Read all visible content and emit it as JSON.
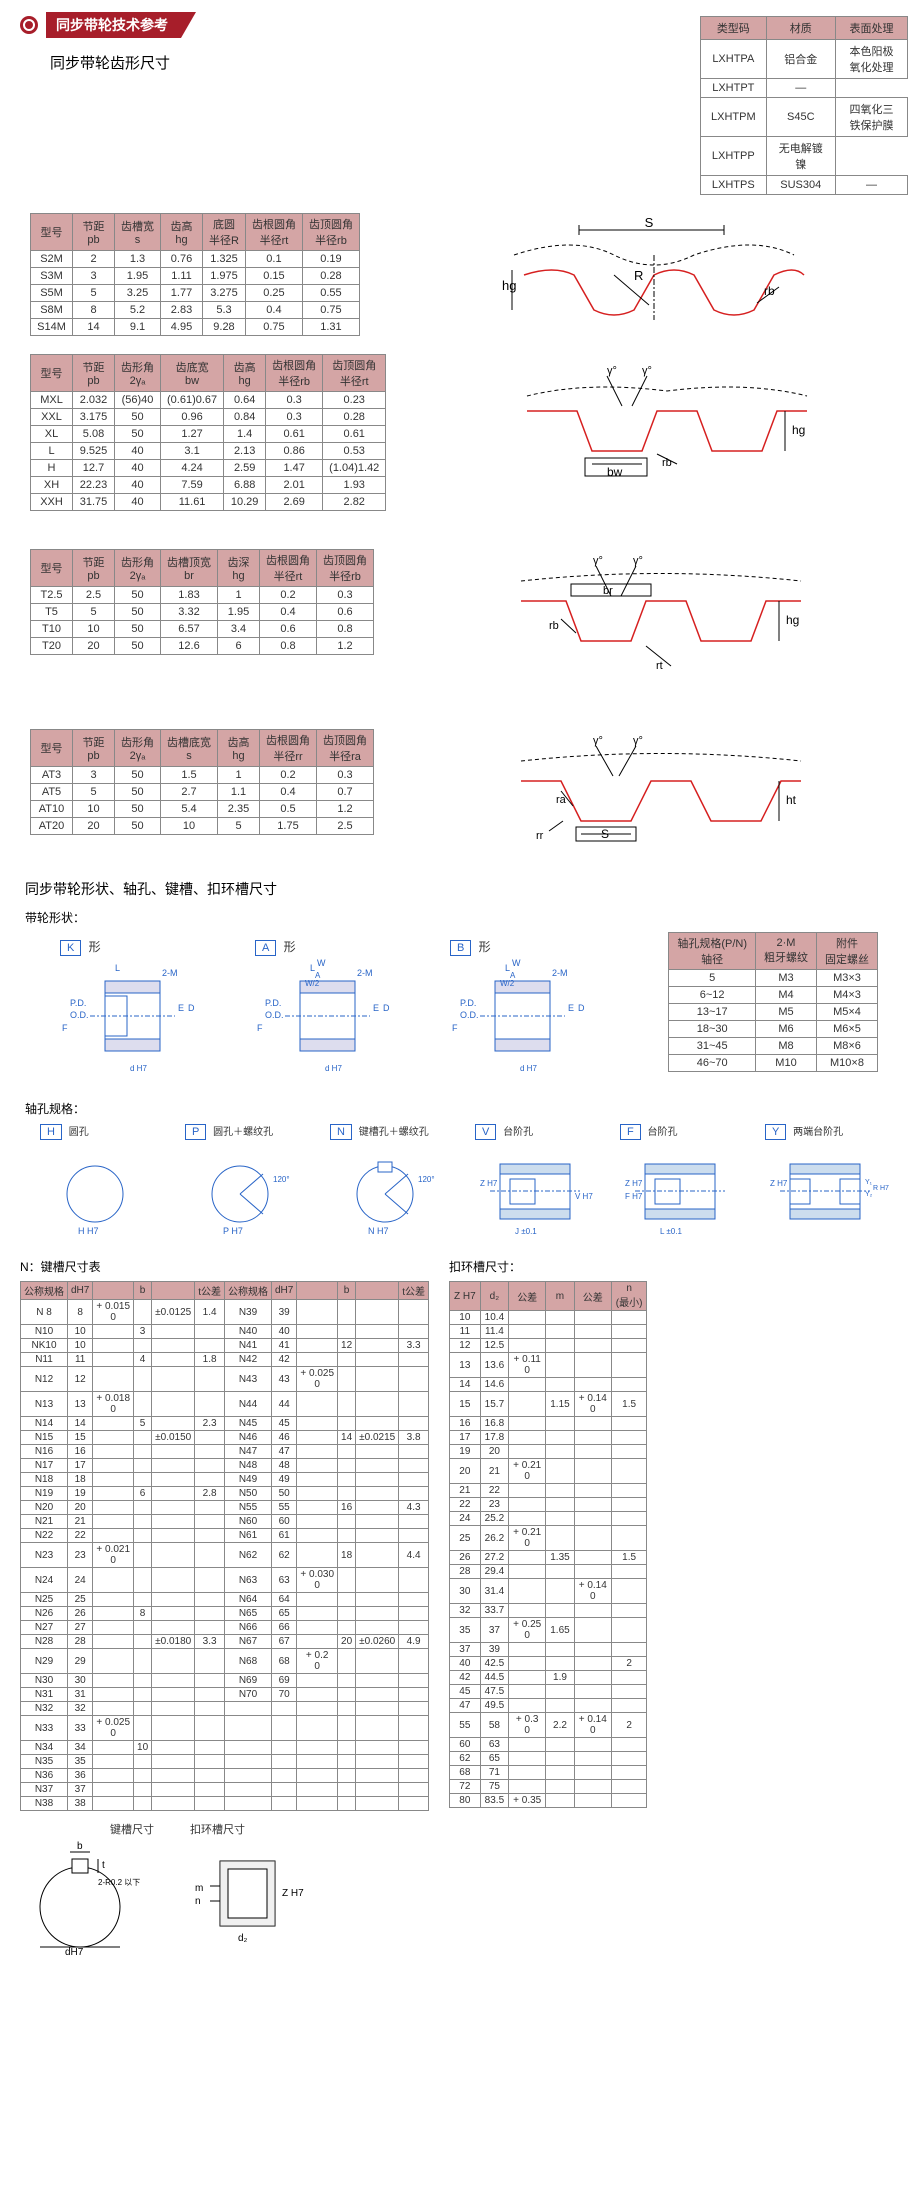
{
  "header": {
    "title": "同步带轮技术参考"
  },
  "subtitle": "同步带轮齿形尺寸",
  "mat_table": {
    "headers": [
      "类型码",
      "材质",
      "表面处理"
    ],
    "rows": [
      [
        "LXHTPA",
        "铝合金",
        "本色阳极氧化处理"
      ],
      [
        "LXHTPT",
        "",
        "—"
      ],
      [
        "LXHTPM",
        "S45C",
        "四氧化三铁保护膜"
      ],
      [
        "LXHTPP",
        "",
        "无电解镀镍"
      ],
      [
        "LXHTPS",
        "SUS304",
        "—"
      ]
    ]
  },
  "tooth1": {
    "headers": [
      "型号",
      "节距\npb",
      "齿槽宽\ns",
      "齿高\nhg",
      "底圆\n半径R",
      "齿根圆角\n半径rt",
      "齿顶圆角\n半径rb"
    ],
    "rows": [
      [
        "S2M",
        "2",
        "1.3",
        "0.76",
        "1.325",
        "0.1",
        "0.19"
      ],
      [
        "S3M",
        "3",
        "1.95",
        "1.11",
        "1.975",
        "0.15",
        "0.28"
      ],
      [
        "S5M",
        "5",
        "3.25",
        "1.77",
        "3.275",
        "0.25",
        "0.55"
      ],
      [
        "S8M",
        "8",
        "5.2",
        "2.83",
        "5.3",
        "0.4",
        "0.75"
      ],
      [
        "S14M",
        "14",
        "9.1",
        "4.95",
        "9.28",
        "0.75",
        "1.31"
      ]
    ],
    "diagram_labels": [
      "S",
      "R",
      "hg",
      "rb"
    ]
  },
  "tooth2": {
    "headers": [
      "型号",
      "节距\npb",
      "齿形角\n2γₐ",
      "齿底宽\nbw",
      "齿高\nhg",
      "齿根圆角\n半径rb",
      "齿顶圆角\n半径rt"
    ],
    "rows": [
      [
        "MXL",
        "2.032",
        "(56)40",
        "(0.61)0.67",
        "0.64",
        "0.3",
        "0.23"
      ],
      [
        "XXL",
        "3.175",
        "50",
        "0.96",
        "0.84",
        "0.3",
        "0.28"
      ],
      [
        "XL",
        "5.08",
        "50",
        "1.27",
        "1.4",
        "0.61",
        "0.61"
      ],
      [
        "L",
        "9.525",
        "40",
        "3.1",
        "2.13",
        "0.86",
        "0.53"
      ],
      [
        "H",
        "12.7",
        "40",
        "4.24",
        "2.59",
        "1.47",
        "(1.04)1.42"
      ],
      [
        "XH",
        "22.23",
        "40",
        "7.59",
        "6.88",
        "2.01",
        "1.93"
      ],
      [
        "XXH",
        "31.75",
        "40",
        "11.61",
        "10.29",
        "2.69",
        "2.82"
      ]
    ],
    "diagram_labels": [
      "γ°",
      "γ°",
      "bw",
      "hg",
      "rb"
    ]
  },
  "tooth3": {
    "headers": [
      "型号",
      "节距\npb",
      "齿形角\n2γₐ",
      "齿槽顶宽\nbr",
      "齿深\nhg",
      "齿根圆角\n半径rt",
      "齿顶圆角\n半径rb"
    ],
    "rows": [
      [
        "T2.5",
        "2.5",
        "50",
        "1.83",
        "1",
        "0.2",
        "0.3"
      ],
      [
        "T5",
        "5",
        "50",
        "3.32",
        "1.95",
        "0.4",
        "0.6"
      ],
      [
        "T10",
        "10",
        "50",
        "6.57",
        "3.4",
        "0.6",
        "0.8"
      ],
      [
        "T20",
        "20",
        "50",
        "12.6",
        "6",
        "0.8",
        "1.2"
      ]
    ],
    "diagram_labels": [
      "γ°",
      "γ°",
      "br",
      "hg",
      "rb",
      "rt"
    ]
  },
  "tooth4": {
    "headers": [
      "型号",
      "节距\npb",
      "齿形角\n2γₐ",
      "齿槽底宽\ns",
      "齿高\nhg",
      "齿根圆角\n半径rr",
      "齿顶圆角\n半径ra"
    ],
    "rows": [
      [
        "AT3",
        "3",
        "50",
        "1.5",
        "1",
        "0.2",
        "0.3"
      ],
      [
        "AT5",
        "5",
        "50",
        "2.7",
        "1.1",
        "0.4",
        "0.7"
      ],
      [
        "AT10",
        "10",
        "50",
        "5.4",
        "2.35",
        "0.5",
        "1.2"
      ],
      [
        "AT20",
        "20",
        "50",
        "10",
        "5",
        "1.75",
        "2.5"
      ]
    ],
    "diagram_labels": [
      "γ°",
      "γ°",
      "S",
      "ht",
      "ra",
      "rr"
    ]
  },
  "section2": "同步带轮形状、轴孔、键槽、扣环槽尺寸",
  "shape_section_label": "带轮形状：",
  "shapes": [
    {
      "code": "K",
      "suffix": "形"
    },
    {
      "code": "A",
      "suffix": "形"
    },
    {
      "code": "B",
      "suffix": "形"
    }
  ],
  "shape_dims": [
    "L",
    "2-M",
    "W",
    "A",
    "W/2",
    "P.D.",
    "O.D.",
    "E",
    "D",
    "F",
    "d",
    "H7"
  ],
  "axle_table": {
    "headers": [
      "轴孔规格(P/N)\n轴径",
      "2·M\n粗牙螺纹",
      "附件\n固定螺丝"
    ],
    "rows": [
      [
        "5",
        "M3",
        "M3×3"
      ],
      [
        "6~12",
        "M4",
        "M4×3"
      ],
      [
        "13~17",
        "M5",
        "M5×4"
      ],
      [
        "18~30",
        "M6",
        "M6×5"
      ],
      [
        "31~45",
        "M8",
        "M8×6"
      ],
      [
        "46~70",
        "M10",
        "M10×8"
      ]
    ]
  },
  "bore_section_label": "轴孔规格：",
  "bores": [
    {
      "code": "H",
      "label": "圆孔"
    },
    {
      "code": "P",
      "label": "圆孔＋螺纹孔"
    },
    {
      "code": "N",
      "label": "键槽孔＋螺纹孔"
    },
    {
      "code": "V",
      "label": "台阶孔"
    },
    {
      "code": "F",
      "label": "台阶孔"
    },
    {
      "code": "Y",
      "label": "两端台阶孔"
    }
  ],
  "bore_dims": [
    "H H7",
    "P H7",
    "120°",
    "Z H7",
    "V H7",
    "J ±0.1",
    "F H7",
    "L ±0.1",
    "Y₁",
    "Y₂",
    "R H7"
  ],
  "key_section_label": "N：键槽尺寸表",
  "key_table": {
    "headers": [
      "公称规格",
      "dH7",
      "",
      "b",
      "",
      "t公差",
      "公称规格",
      "dH7",
      "",
      "b",
      "",
      "t公差"
    ],
    "rows_left": [
      [
        "N 8",
        "8",
        "+ 0.015\n0",
        "",
        "±0.0125",
        "1.4",
        "",
        "",
        "",
        "",
        "",
        ""
      ],
      [
        "N10",
        "10",
        "",
        "3",
        "",
        "",
        "",
        "",
        "",
        "",
        "",
        ""
      ],
      [
        "NK10",
        "10",
        "",
        "",
        "",
        "",
        "",
        "",
        "",
        "",
        "",
        ""
      ],
      [
        "N11",
        "11",
        "",
        "4",
        "",
        "1.8",
        "",
        "",
        "",
        "",
        "",
        ""
      ],
      [
        "N12",
        "12",
        "",
        "",
        "",
        "",
        "",
        "",
        "",
        "",
        "",
        ""
      ],
      [
        "N13",
        "13",
        "+ 0.018\n0",
        "",
        "",
        "",
        "",
        "",
        "",
        "",
        "",
        ""
      ],
      [
        "N14",
        "14",
        "",
        "5",
        "",
        "2.3",
        "",
        "",
        "",
        "",
        "",
        ""
      ],
      [
        "N15",
        "15",
        "",
        "",
        "±0.0150",
        "",
        "",
        "",
        "",
        "",
        "",
        ""
      ],
      [
        "N16",
        "16",
        "",
        "",
        "",
        "",
        "",
        "",
        "",
        "",
        "",
        ""
      ],
      [
        "N17",
        "17",
        "",
        "",
        "",
        "",
        "",
        "",
        "",
        "",
        "",
        ""
      ],
      [
        "N18",
        "18",
        "",
        "",
        "",
        "",
        "",
        "",
        "",
        "",
        "",
        ""
      ],
      [
        "N19",
        "19",
        "",
        "6",
        "",
        "2.8",
        "",
        "",
        "",
        "",
        "",
        ""
      ],
      [
        "N20",
        "20",
        "",
        "",
        "",
        "",
        "",
        "",
        "",
        "",
        "",
        ""
      ],
      [
        "N21",
        "21",
        "",
        "",
        "",
        "",
        "",
        "",
        "",
        "",
        "",
        ""
      ],
      [
        "N22",
        "22",
        "",
        "",
        "",
        "",
        "",
        "",
        "",
        "",
        "",
        ""
      ],
      [
        "N23",
        "23",
        "+ 0.021\n0",
        "",
        "",
        "",
        "",
        "",
        "",
        "",
        "",
        ""
      ],
      [
        "N24",
        "24",
        "",
        "",
        "",
        "",
        "",
        "",
        "",
        "",
        "",
        ""
      ],
      [
        "N25",
        "25",
        "",
        "",
        "",
        "",
        "",
        "",
        "",
        "",
        "",
        ""
      ],
      [
        "N26",
        "26",
        "",
        "8",
        "",
        "",
        "",
        "",
        "",
        "",
        "",
        ""
      ],
      [
        "N27",
        "27",
        "",
        "",
        "",
        "",
        "",
        "",
        "",
        "",
        "",
        ""
      ],
      [
        "N28",
        "28",
        "",
        "",
        "±0.0180",
        "3.3",
        "",
        "",
        "",
        "",
        "",
        ""
      ],
      [
        "N29",
        "29",
        "",
        "",
        "",
        "",
        "",
        "",
        "",
        "",
        "",
        ""
      ],
      [
        "N30",
        "30",
        "",
        "",
        "",
        "",
        "",
        "",
        "",
        "",
        "",
        ""
      ],
      [
        "N31",
        "31",
        "",
        "",
        "",
        "",
        "",
        "",
        "",
        "",
        "",
        ""
      ],
      [
        "N32",
        "32",
        "",
        "",
        "",
        "",
        "",
        "",
        "",
        "",
        "",
        ""
      ],
      [
        "N33",
        "33",
        "+ 0.025\n0",
        "",
        "",
        "",
        "",
        "",
        "",
        "",
        "",
        ""
      ],
      [
        "N34",
        "34",
        "",
        "10",
        "",
        "",
        "",
        "",
        "",
        "",
        "",
        ""
      ],
      [
        "N35",
        "35",
        "",
        "",
        "",
        "",
        "",
        "",
        "",
        "",
        "",
        ""
      ],
      [
        "N36",
        "36",
        "",
        "",
        "",
        "",
        "",
        "",
        "",
        "",
        "",
        ""
      ],
      [
        "N37",
        "37",
        "",
        "",
        "",
        "",
        "",
        "",
        "",
        "",
        "",
        ""
      ],
      [
        "N38",
        "38",
        "",
        "",
        "",
        "",
        "",
        "",
        "",
        "",
        "",
        ""
      ]
    ],
    "rows_right": [
      [
        "N39",
        "39",
        "",
        "",
        "",
        "",
        ""
      ],
      [
        "N40",
        "40",
        "",
        "",
        "",
        "",
        ""
      ],
      [
        "N41",
        "41",
        "",
        "12",
        "",
        "3.3",
        ""
      ],
      [
        "N42",
        "42",
        "",
        "",
        "",
        "",
        ""
      ],
      [
        "N43",
        "43",
        "+ 0.025\n0",
        "",
        "",
        "",
        ""
      ],
      [
        "N44",
        "44",
        "",
        "",
        "",
        "",
        ""
      ],
      [
        "N45",
        "45",
        "",
        "",
        "",
        "",
        ""
      ],
      [
        "N46",
        "46",
        "",
        "14",
        "±0.0215",
        "3.8",
        ""
      ],
      [
        "N47",
        "47",
        "",
        "",
        "",
        "",
        ""
      ],
      [
        "N48",
        "48",
        "",
        "",
        "",
        "",
        "+ 0.2\n0"
      ],
      [
        "N49",
        "49",
        "",
        "",
        "",
        "",
        ""
      ],
      [
        "N50",
        "50",
        "",
        "",
        "",
        "",
        ""
      ],
      [
        "N55",
        "55",
        "",
        "16",
        "",
        "4.3",
        ""
      ],
      [
        "N60",
        "60",
        "",
        "",
        "",
        "",
        ""
      ],
      [
        "N61",
        "61",
        "",
        "",
        "",
        "",
        ""
      ],
      [
        "N62",
        "62",
        "",
        "18",
        "",
        "4.4",
        ""
      ],
      [
        "N63",
        "63",
        "+ 0.030\n0",
        "",
        "",
        "",
        ""
      ],
      [
        "N64",
        "64",
        "",
        "",
        "",
        "",
        ""
      ],
      [
        "N65",
        "65",
        "",
        "",
        "",
        "",
        ""
      ],
      [
        "N66",
        "66",
        "",
        "",
        "",
        "",
        ""
      ],
      [
        "N67",
        "67",
        "",
        "20",
        "±0.0260",
        "4.9",
        ""
      ],
      [
        "N68",
        "68",
        "+ 0.2\n0",
        "",
        "",
        "",
        ""
      ],
      [
        "N69",
        "69",
        "",
        "",
        "",
        "",
        ""
      ],
      [
        "N70",
        "70",
        "",
        "",
        "",
        "",
        ""
      ]
    ]
  },
  "key_dim_label": "键槽尺寸",
  "key_dim_labels": [
    "b",
    "t",
    "2-R0.2 以下",
    "dH7"
  ],
  "snap_section_label": "扣环槽尺寸：",
  "snap_dim_label": "扣环槽尺寸",
  "snap_dim_labels": [
    "m",
    "n",
    "d₂",
    "Z H7"
  ],
  "snap_table": {
    "headers": [
      "Z H7",
      "d₂",
      "公差",
      "m",
      "公差",
      "n\n(最小)"
    ],
    "rows": [
      [
        "10",
        "10.4",
        "",
        "",
        "",
        ""
      ],
      [
        "11",
        "11.4",
        "",
        "",
        "",
        ""
      ],
      [
        "12",
        "12.5",
        "",
        "",
        "",
        ""
      ],
      [
        "13",
        "13.6",
        "+ 0.11\n0",
        "",
        "",
        ""
      ],
      [
        "14",
        "14.6",
        "",
        "",
        "",
        ""
      ],
      [
        "15",
        "15.7",
        "",
        "1.15",
        "+ 0.14\n0",
        "1.5"
      ],
      [
        "16",
        "16.8",
        "",
        "",
        "",
        ""
      ],
      [
        "17",
        "17.8",
        "",
        "",
        "",
        ""
      ],
      [
        "19",
        "20",
        "",
        "",
        "",
        ""
      ],
      [
        "20",
        "21",
        "+ 0.21\n0",
        "",
        "",
        ""
      ],
      [
        "21",
        "22",
        "",
        "",
        "",
        ""
      ],
      [
        "22",
        "23",
        "",
        "",
        "",
        ""
      ],
      [
        "24",
        "25.2",
        "",
        "",
        "",
        ""
      ],
      [
        "25",
        "26.2",
        "+ 0.21\n0",
        "",
        "",
        ""
      ],
      [
        "26",
        "27.2",
        "",
        "1.35",
        "",
        "1.5"
      ],
      [
        "28",
        "29.4",
        "",
        "",
        "",
        ""
      ],
      [
        "30",
        "31.4",
        "",
        "",
        "+ 0.14\n0",
        ""
      ],
      [
        "32",
        "33.7",
        "",
        "",
        "",
        ""
      ],
      [
        "35",
        "37",
        "+ 0.25\n0",
        "1.65",
        "",
        ""
      ],
      [
        "37",
        "39",
        "",
        "",
        "",
        ""
      ],
      [
        "40",
        "42.5",
        "",
        "",
        "",
        "2"
      ],
      [
        "42",
        "44.5",
        "",
        "1.9",
        "",
        ""
      ],
      [
        "45",
        "47.5",
        "",
        "",
        "",
        ""
      ],
      [
        "47",
        "49.5",
        "",
        "",
        "",
        ""
      ],
      [
        "55",
        "58",
        "+ 0.3\n0",
        "2.2",
        "+ 0.14\n0",
        "2"
      ],
      [
        "60",
        "63",
        "",
        "",
        "",
        ""
      ],
      [
        "62",
        "65",
        "",
        "",
        "",
        ""
      ],
      [
        "68",
        "71",
        "",
        "",
        "",
        ""
      ],
      [
        "72",
        "75",
        "",
        "",
        "",
        ""
      ],
      [
        "80",
        "83.5",
        "+ 0.35",
        "",
        "",
        ""
      ]
    ]
  }
}
